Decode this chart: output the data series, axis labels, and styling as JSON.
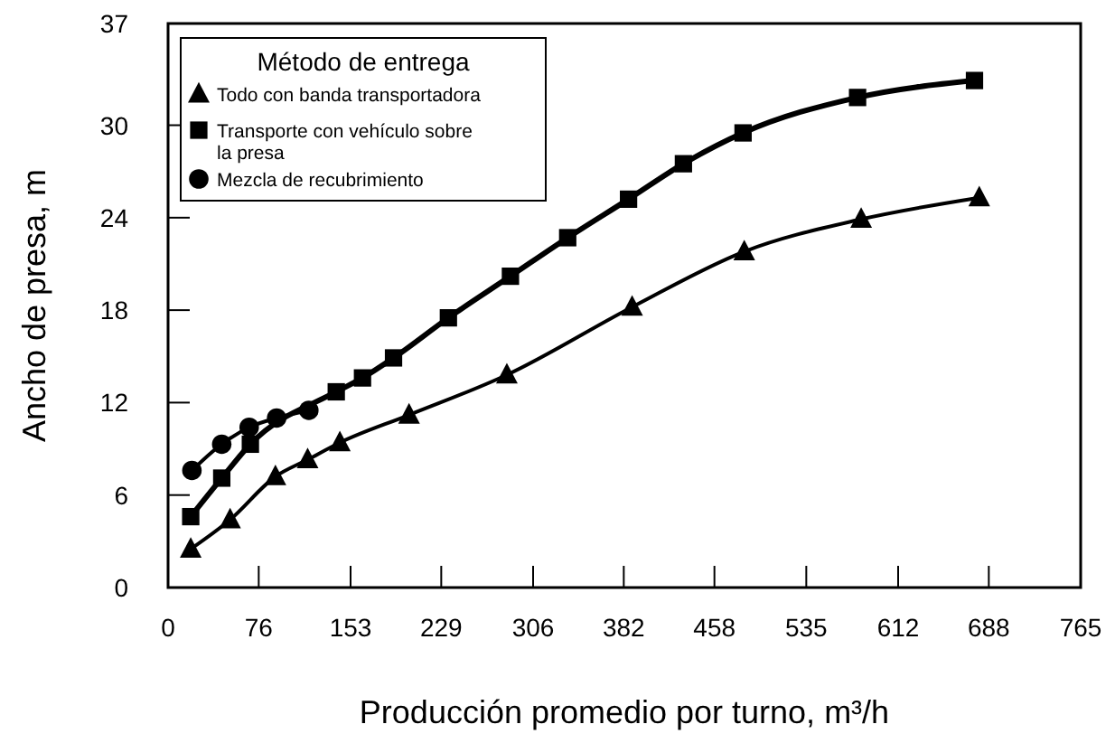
{
  "chart_data": {
    "type": "line",
    "xlabel": "Producción promedio por turno, m³/h",
    "ylabel": "Ancho de presa, m",
    "legend_title": "Método de entrega",
    "legend": "top left",
    "grid": false,
    "xlim": [
      0,
      765
    ],
    "xticks": [
      0,
      76,
      153,
      229,
      306,
      382,
      458,
      535,
      612,
      688,
      765
    ],
    "ylim": [
      0,
      36.6
    ],
    "yticks": [
      0,
      6,
      12,
      18,
      24,
      30,
      {
        "value": 36.6,
        "label": "37"
      }
    ],
    "series": [
      {
        "name": "Todo con banda transportadora",
        "color": "#000000",
        "marker": "triangle",
        "x": [
          19,
          52,
          90,
          117,
          144,
          202,
          284,
          389,
          483,
          581,
          680
        ],
        "values": [
          2.5,
          4.4,
          7.2,
          8.3,
          9.4,
          11.2,
          13.8,
          18.2,
          21.8,
          23.9,
          25.3
        ]
      },
      {
        "name": "Transporte con vehículo sobre la presa",
        "color": "#000000",
        "marker": "square",
        "x": [
          19,
          45,
          69,
          91,
          141,
          163,
          189,
          235,
          287,
          335,
          386,
          432,
          482,
          578,
          676
        ],
        "values": [
          4.6,
          7.1,
          9.3,
          null,
          12.7,
          13.6,
          14.9,
          17.5,
          20.2,
          22.7,
          25.2,
          27.5,
          29.5,
          31.8,
          32.9
        ]
      },
      {
        "name": "Mezcla de recubrimiento",
        "color": "#000000",
        "marker": "circle",
        "x": [
          20,
          45,
          68,
          91,
          118
        ],
        "values": [
          7.6,
          9.3,
          10.4,
          11,
          11.5
        ]
      }
    ]
  }
}
